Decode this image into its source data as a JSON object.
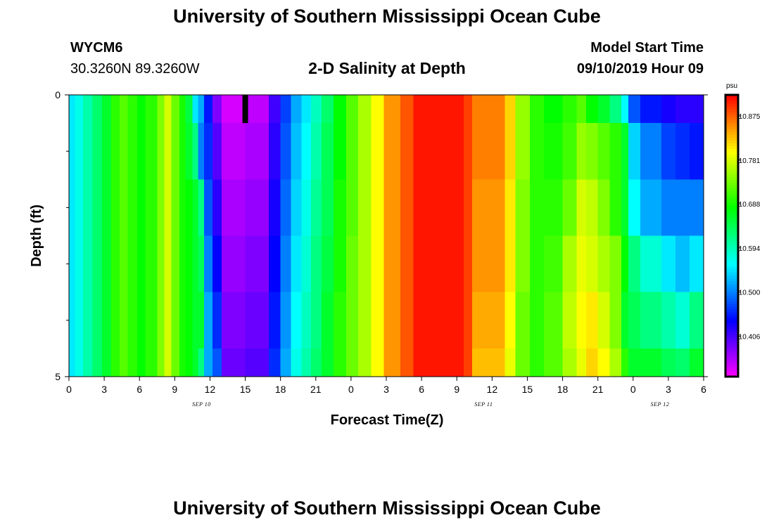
{
  "header": {
    "title": "University of Southern Mississippi Ocean Cube",
    "station": "WYCM6",
    "coords": "30.3260N 89.3260W",
    "subtitle": "2-D Salinity at Depth",
    "model_label": "Model Start Time",
    "model_time": "09/10/2019 Hour 09"
  },
  "footer": {
    "title": "University of Southern Mississippi Ocean Cube"
  },
  "colors": {
    "background": "#ffffff",
    "axis": "#000000",
    "now_marker": "#000000"
  },
  "chart_data": {
    "type": "heatmap",
    "title": "2-D Salinity at Depth",
    "xlabel": "Forecast Time(Z)",
    "ylabel": "Depth (ft)",
    "x_hours_range": [
      0,
      54
    ],
    "depth_range": [
      0,
      5
    ],
    "x_tick_hours": [
      0,
      3,
      6,
      9,
      12,
      15,
      18,
      21,
      24,
      27,
      30,
      33,
      36,
      39,
      42,
      45,
      48,
      51,
      54
    ],
    "x_tick_labels": [
      "0",
      "3",
      "6",
      "9",
      "12",
      "15",
      "18",
      "21",
      "0",
      "3",
      "6",
      "9",
      "12",
      "15",
      "18",
      "21",
      "0",
      "3",
      "6"
    ],
    "y_major_ticks": [
      0,
      5
    ],
    "y_major_labels": [
      "0",
      "5"
    ],
    "y_minor_ticks": [
      1,
      2,
      3,
      4
    ],
    "date_labels": [
      {
        "text": "SEP 10",
        "hour": 12
      },
      {
        "text": "SEP 11",
        "hour": 36
      },
      {
        "text": "SEP 12",
        "hour": 51
      }
    ],
    "now_marker_hour": 15,
    "now_marker_depth": 0.5,
    "colorbar": {
      "unit": "psu",
      "min": 10.32,
      "max": 10.92,
      "labels": [
        "10.875",
        "10.781",
        "10.688",
        "10.594",
        "10.500",
        "10.406"
      ],
      "label_values": [
        10.875,
        10.781,
        10.688,
        10.594,
        10.5,
        10.406
      ]
    },
    "depth_bins": [
      [
        0,
        0.5
      ],
      [
        0.5,
        1.5
      ],
      [
        1.5,
        2.5
      ],
      [
        2.5,
        3.5
      ],
      [
        3.5,
        4.5
      ],
      [
        4.5,
        5.0
      ]
    ],
    "time_bins": [
      {
        "start": 0,
        "end": 0.5,
        "values": [
          10.55,
          10.55,
          10.55,
          10.55,
          10.55,
          10.55
        ]
      },
      {
        "start": 0.5,
        "end": 1.2,
        "values": [
          10.57,
          10.57,
          10.57,
          10.57,
          10.57,
          10.57
        ]
      },
      {
        "start": 1.2,
        "end": 2.0,
        "values": [
          10.6,
          10.6,
          10.6,
          10.6,
          10.6,
          10.6
        ]
      },
      {
        "start": 2.0,
        "end": 2.8,
        "values": [
          10.63,
          10.63,
          10.63,
          10.63,
          10.63,
          10.63
        ]
      },
      {
        "start": 2.8,
        "end": 3.6,
        "values": [
          10.66,
          10.66,
          10.66,
          10.66,
          10.66,
          10.66
        ]
      },
      {
        "start": 3.6,
        "end": 4.3,
        "values": [
          10.7,
          10.7,
          10.7,
          10.7,
          10.7,
          10.7
        ]
      },
      {
        "start": 4.3,
        "end": 5.0,
        "values": [
          10.72,
          10.72,
          10.72,
          10.72,
          10.72,
          10.72
        ]
      },
      {
        "start": 5.0,
        "end": 5.8,
        "values": [
          10.7,
          10.7,
          10.7,
          10.7,
          10.7,
          10.7
        ]
      },
      {
        "start": 5.8,
        "end": 6.5,
        "values": [
          10.68,
          10.68,
          10.68,
          10.68,
          10.68,
          10.68
        ]
      },
      {
        "start": 6.5,
        "end": 7.5,
        "values": [
          10.7,
          10.7,
          10.7,
          10.7,
          10.7,
          10.7
        ]
      },
      {
        "start": 7.5,
        "end": 8.1,
        "values": [
          10.74,
          10.74,
          10.74,
          10.74,
          10.74,
          10.74
        ]
      },
      {
        "start": 8.1,
        "end": 8.7,
        "values": [
          10.78,
          10.78,
          10.78,
          10.78,
          10.78,
          10.78
        ]
      },
      {
        "start": 8.7,
        "end": 9.4,
        "values": [
          10.73,
          10.73,
          10.73,
          10.73,
          10.73,
          10.73
        ]
      },
      {
        "start": 9.4,
        "end": 9.9,
        "values": [
          10.69,
          10.69,
          10.69,
          10.69,
          10.69,
          10.69
        ]
      },
      {
        "start": 9.9,
        "end": 10.5,
        "values": [
          10.65,
          10.66,
          10.68,
          10.68,
          10.68,
          10.68
        ]
      },
      {
        "start": 10.5,
        "end": 11.0,
        "values": [
          10.55,
          10.62,
          10.66,
          10.66,
          10.66,
          10.66
        ]
      },
      {
        "start": 11.0,
        "end": 11.5,
        "values": [
          10.52,
          10.5,
          10.62,
          10.64,
          10.66,
          10.62
        ]
      },
      {
        "start": 11.5,
        "end": 12.2,
        "values": [
          10.45,
          10.46,
          10.48,
          10.5,
          10.52,
          10.52
        ]
      },
      {
        "start": 12.2,
        "end": 13.0,
        "values": [
          10.38,
          10.4,
          10.42,
          10.44,
          10.46,
          10.48
        ]
      },
      {
        "start": 13.0,
        "end": 15.0,
        "values": [
          10.34,
          10.35,
          10.36,
          10.37,
          10.38,
          10.39
        ]
      },
      {
        "start": 15.0,
        "end": 17.0,
        "values": [
          10.35,
          10.36,
          10.37,
          10.38,
          10.39,
          10.4
        ]
      },
      {
        "start": 17.0,
        "end": 18.0,
        "values": [
          10.41,
          10.42,
          10.43,
          10.44,
          10.45,
          10.46
        ]
      },
      {
        "start": 18.0,
        "end": 18.9,
        "values": [
          10.47,
          10.48,
          10.49,
          10.5,
          10.51,
          10.52
        ]
      },
      {
        "start": 18.9,
        "end": 19.8,
        "values": [
          10.52,
          10.53,
          10.54,
          10.55,
          10.56,
          10.57
        ]
      },
      {
        "start": 19.8,
        "end": 20.6,
        "values": [
          10.55,
          10.56,
          10.57,
          10.58,
          10.59,
          10.6
        ]
      },
      {
        "start": 20.6,
        "end": 21.5,
        "values": [
          10.59,
          10.6,
          10.61,
          10.62,
          10.62,
          10.63
        ]
      },
      {
        "start": 21.5,
        "end": 22.5,
        "values": [
          10.63,
          10.64,
          10.64,
          10.65,
          10.66,
          10.66
        ]
      },
      {
        "start": 22.5,
        "end": 23.6,
        "values": [
          10.68,
          10.68,
          10.69,
          10.69,
          10.7,
          10.7
        ]
      },
      {
        "start": 23.6,
        "end": 24.6,
        "values": [
          10.72,
          10.72,
          10.72,
          10.73,
          10.73,
          10.73
        ]
      },
      {
        "start": 24.6,
        "end": 25.7,
        "values": [
          10.76,
          10.76,
          10.76,
          10.76,
          10.76,
          10.76
        ]
      },
      {
        "start": 25.7,
        "end": 26.8,
        "values": [
          10.8,
          10.8,
          10.8,
          10.8,
          10.8,
          10.8
        ]
      },
      {
        "start": 26.8,
        "end": 28.2,
        "values": [
          10.85,
          10.85,
          10.85,
          10.85,
          10.85,
          10.85
        ]
      },
      {
        "start": 28.2,
        "end": 29.3,
        "values": [
          10.88,
          10.88,
          10.88,
          10.88,
          10.88,
          10.88
        ]
      },
      {
        "start": 29.3,
        "end": 33.6,
        "values": [
          10.91,
          10.91,
          10.91,
          10.91,
          10.91,
          10.91
        ]
      },
      {
        "start": 33.6,
        "end": 34.3,
        "values": [
          10.89,
          10.89,
          10.89,
          10.89,
          10.89,
          10.89
        ]
      },
      {
        "start": 34.3,
        "end": 37.1,
        "values": [
          10.86,
          10.86,
          10.85,
          10.85,
          10.84,
          10.83
        ]
      },
      {
        "start": 37.1,
        "end": 38.0,
        "values": [
          10.82,
          10.82,
          10.81,
          10.81,
          10.8,
          10.79
        ]
      },
      {
        "start": 38.0,
        "end": 39.2,
        "values": [
          10.75,
          10.75,
          10.74,
          10.74,
          10.73,
          10.73
        ]
      },
      {
        "start": 39.2,
        "end": 40.4,
        "values": [
          10.7,
          10.7,
          10.7,
          10.7,
          10.7,
          10.7
        ]
      },
      {
        "start": 40.4,
        "end": 42.0,
        "values": [
          10.68,
          10.69,
          10.7,
          10.71,
          10.72,
          10.72
        ]
      },
      {
        "start": 42.0,
        "end": 43.2,
        "values": [
          10.7,
          10.71,
          10.73,
          10.76,
          10.77,
          10.76
        ]
      },
      {
        "start": 43.2,
        "end": 44.0,
        "values": [
          10.72,
          10.75,
          10.78,
          10.79,
          10.8,
          10.79
        ]
      },
      {
        "start": 44.0,
        "end": 45.0,
        "values": [
          10.68,
          10.74,
          10.77,
          10.78,
          10.81,
          10.82
        ]
      },
      {
        "start": 45.0,
        "end": 46.0,
        "values": [
          10.66,
          10.72,
          10.74,
          10.76,
          10.78,
          10.8
        ]
      },
      {
        "start": 46.0,
        "end": 47.0,
        "values": [
          10.62,
          10.7,
          10.7,
          10.74,
          10.74,
          10.76
        ]
      },
      {
        "start": 47.0,
        "end": 47.6,
        "values": [
          10.56,
          10.66,
          10.66,
          10.68,
          10.66,
          10.7
        ]
      },
      {
        "start": 47.6,
        "end": 48.6,
        "values": [
          10.48,
          10.54,
          10.56,
          10.62,
          10.64,
          10.66
        ]
      },
      {
        "start": 48.6,
        "end": 50.4,
        "values": [
          10.45,
          10.5,
          10.52,
          10.58,
          10.62,
          10.66
        ]
      },
      {
        "start": 50.4,
        "end": 51.6,
        "values": [
          10.43,
          10.47,
          10.5,
          10.55,
          10.6,
          10.64
        ]
      },
      {
        "start": 51.6,
        "end": 52.8,
        "values": [
          10.42,
          10.46,
          10.5,
          10.53,
          10.58,
          10.63
        ]
      },
      {
        "start": 52.8,
        "end": 54.0,
        "values": [
          10.42,
          10.45,
          10.5,
          10.55,
          10.62,
          10.66
        ]
      }
    ]
  }
}
